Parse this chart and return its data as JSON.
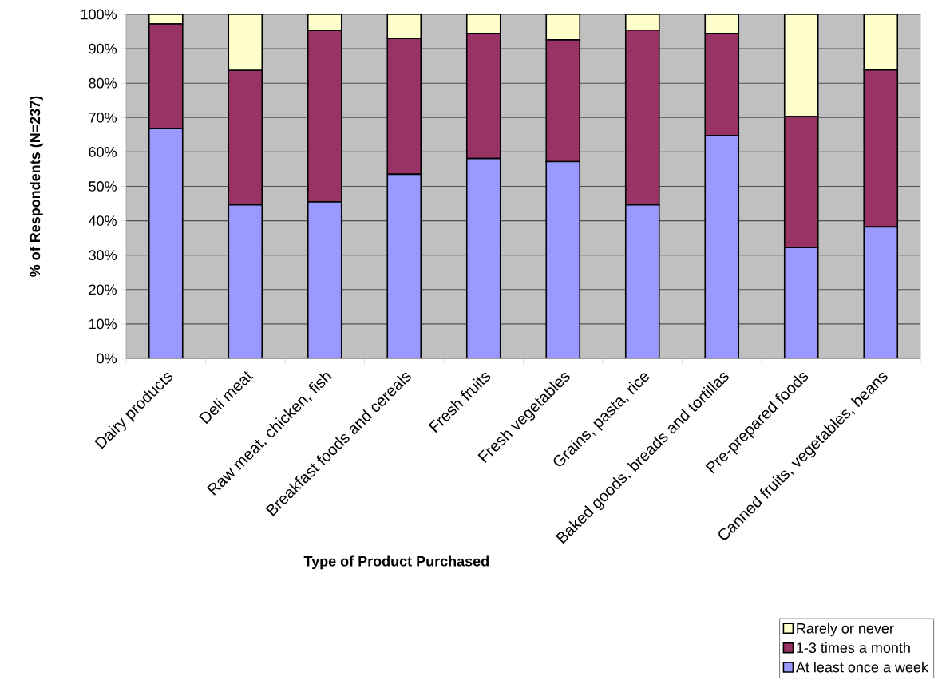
{
  "chart_data": {
    "type": "bar",
    "stacked": true,
    "xlabel": "Type of Product Purchased",
    "ylabel": "% of Respondents (N=237)",
    "categories": [
      "Dairy products",
      "Deli meat",
      "Raw meat, chicken, fish",
      "Breakfast foods and cereals",
      "Fresh fruits",
      "Fresh vegetables",
      "Grains, pasta, rice",
      "Baked goods, breads and tortillas",
      "Pre-prepared foods",
      "Canned fruits, vegetables, beans"
    ],
    "series": [
      {
        "name": "At least once a week",
        "color": "#9999ff",
        "values": [
          66.8,
          44.6,
          45.5,
          53.5,
          58.1,
          57.2,
          44.6,
          64.7,
          32.2,
          38.2
        ]
      },
      {
        "name": "1-3 times a month",
        "color": "#993366",
        "values": [
          30.4,
          39.1,
          49.8,
          39.5,
          36.4,
          35.4,
          50.8,
          29.8,
          38.1,
          45.6
        ]
      },
      {
        "name": "Rarely or never",
        "color": "#ffffcc",
        "values": [
          2.8,
          16.3,
          4.7,
          7.0,
          5.5,
          7.4,
          4.6,
          5.5,
          29.7,
          16.2
        ]
      }
    ],
    "ylim": [
      0,
      100
    ],
    "yticks": [
      {
        "value": 0,
        "label": "0%"
      },
      {
        "value": 10,
        "label": "10%"
      },
      {
        "value": 20,
        "label": "20%"
      },
      {
        "value": 30,
        "label": "30%"
      },
      {
        "value": 40,
        "label": "40%"
      },
      {
        "value": 50,
        "label": "50%"
      },
      {
        "value": 60,
        "label": "60%"
      },
      {
        "value": 70,
        "label": "70%"
      },
      {
        "value": 80,
        "label": "80%"
      },
      {
        "value": 90,
        "label": "90%"
      },
      {
        "value": 100,
        "label": "100%"
      }
    ],
    "grid": "y",
    "legend": "bottom right"
  }
}
